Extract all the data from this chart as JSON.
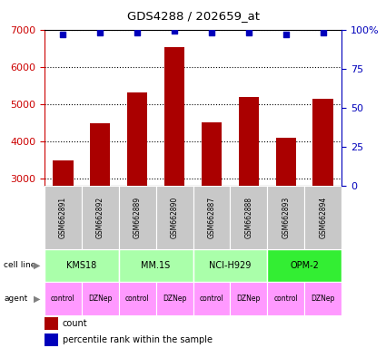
{
  "title": "GDS4288 / 202659_at",
  "samples": [
    "GSM662891",
    "GSM662892",
    "GSM662889",
    "GSM662890",
    "GSM662887",
    "GSM662888",
    "GSM662893",
    "GSM662894"
  ],
  "counts": [
    3480,
    4480,
    5320,
    6520,
    4500,
    5200,
    4100,
    5150
  ],
  "percentiles": [
    97,
    98,
    98,
    99,
    98,
    98,
    97,
    98
  ],
  "agents": [
    "control",
    "DZNep",
    "control",
    "DZNep",
    "control",
    "DZNep",
    "control",
    "DZNep"
  ],
  "agent_color": "#FF99FF",
  "bar_color": "#AA0000",
  "marker_color": "#0000BB",
  "ylim_left": [
    2800,
    7000
  ],
  "ylim_right": [
    0,
    100
  ],
  "yticks_left": [
    3000,
    4000,
    5000,
    6000,
    7000
  ],
  "yticks_right": [
    0,
    25,
    50,
    75,
    100
  ],
  "ytick_labels_right": [
    "0",
    "25",
    "50",
    "75",
    "100%"
  ],
  "left_axis_color": "#CC0000",
  "right_axis_color": "#0000BB",
  "gsm_row_color": "#C8C8C8",
  "cell_line_groups": [
    {
      "name": "KMS18",
      "start": 0,
      "end": 2,
      "color": "#AAFFAA"
    },
    {
      "name": "MM.1S",
      "start": 2,
      "end": 4,
      "color": "#AAFFAA"
    },
    {
      "name": "NCI-H929",
      "start": 4,
      "end": 6,
      "color": "#AAFFAA"
    },
    {
      "name": "OPM-2",
      "start": 6,
      "end": 8,
      "color": "#33EE33"
    }
  ]
}
